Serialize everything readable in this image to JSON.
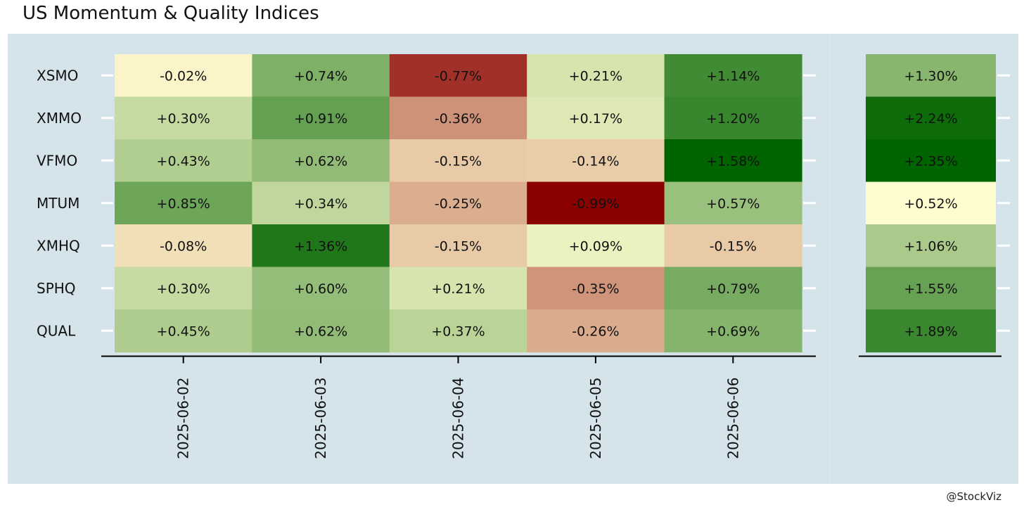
{
  "title": "US Momentum & Quality Indices",
  "credit": "@StockViz",
  "chart_data": {
    "type": "heatmap",
    "rows": [
      "XSMO",
      "XMMO",
      "VFMO",
      "MTUM",
      "XMHQ",
      "SPHQ",
      "QUAL"
    ],
    "columns": [
      "2025-06-02",
      "2025-06-03",
      "2025-06-04",
      "2025-06-05",
      "2025-06-06"
    ],
    "values": [
      [
        -0.02,
        0.74,
        -0.77,
        0.21,
        1.14
      ],
      [
        0.3,
        0.91,
        -0.36,
        0.17,
        1.2
      ],
      [
        0.43,
        0.62,
        -0.15,
        -0.14,
        1.58
      ],
      [
        0.85,
        0.34,
        -0.25,
        -0.99,
        0.57
      ],
      [
        -0.08,
        1.36,
        -0.15,
        0.09,
        -0.15
      ],
      [
        0.3,
        0.6,
        0.21,
        -0.35,
        0.79
      ],
      [
        0.45,
        0.62,
        0.37,
        -0.26,
        0.69
      ]
    ],
    "labels": [
      [
        "-0.02%",
        "+0.74%",
        "-0.77%",
        "+0.21%",
        "+1.14%"
      ],
      [
        "+0.30%",
        "+0.91%",
        "-0.36%",
        "+0.17%",
        "+1.20%"
      ],
      [
        "+0.43%",
        "+0.62%",
        "-0.15%",
        "-0.14%",
        "+1.58%"
      ],
      [
        "+0.85%",
        "+0.34%",
        "-0.25%",
        "-0.99%",
        "+0.57%"
      ],
      [
        "-0.08%",
        "+1.36%",
        "-0.15%",
        "+0.09%",
        "-0.15%"
      ],
      [
        "+0.30%",
        "+0.60%",
        "+0.21%",
        "-0.35%",
        "+0.79%"
      ],
      [
        "+0.45%",
        "+0.62%",
        "+0.37%",
        "-0.26%",
        "+0.69%"
      ]
    ],
    "totals": [
      1.3,
      2.24,
      2.35,
      0.52,
      1.06,
      1.55,
      1.89
    ],
    "total_labels": [
      "+1.30%",
      "+2.24%",
      "+2.35%",
      "+0.52%",
      "+1.06%",
      "+1.55%",
      "+1.89%"
    ],
    "colors": {
      "negative": "#8b0000",
      "neutral": "#fffdd0",
      "positive": "#006400",
      "panel_background": "#d5e3ea",
      "axis": "#000000",
      "tick_marks": "#ffffff"
    }
  }
}
